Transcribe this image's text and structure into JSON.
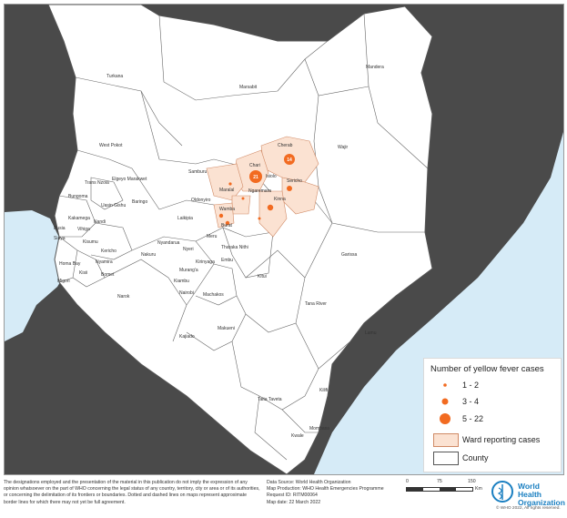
{
  "legend": {
    "title": "Number of yellow fever cases",
    "items": [
      "1 - 2",
      "3 - 4",
      "5 - 22"
    ],
    "ward_label": "Ward reporting cases",
    "county_label": "County"
  },
  "colors": {
    "case_marker": "#f26b21",
    "ward_fill": "#fbe2d2",
    "land": "#ffffff",
    "foreign": "#4a4a4a",
    "water": "#d6ebf7",
    "border": "#555555"
  },
  "counties": [
    "Turkana",
    "Marsabit",
    "Mandera",
    "Wajir",
    "West Pokot",
    "Samburu",
    "Trans Nzoia",
    "Elgeyo Marakwet",
    "Bungoma",
    "Uasin Gishu",
    "Nandi",
    "Busia",
    "Kakamega",
    "Vihiga",
    "Siaya",
    "Kisumu",
    "Kericho",
    "Homa Bay",
    "Kisii",
    "Migori",
    "Nyamira",
    "Bomet",
    "Narok",
    "Nakuru",
    "Laikipia",
    "Baringo",
    "Meru",
    "Isiolo",
    "Nyandarua",
    "Nyeri",
    "Kirinyaga",
    "Murang'a",
    "Tharaka Nithi",
    "Embu",
    "Kiambu",
    "Nairobi",
    "Machakos",
    "Kajiado",
    "Makueni",
    "Kitui",
    "Tana River",
    "Garissa",
    "Lamu",
    "Kilifi",
    "Taita Taveta",
    "Kwale",
    "Mombasa"
  ],
  "wards": [
    "Chari",
    "Cherab",
    "Oldonyiro",
    "Wamba",
    "Maralal",
    "Ngaremara",
    "Burat",
    "Kinna",
    "Sericho"
  ],
  "case_points": [
    {
      "ward": "Cherab",
      "count": "14"
    },
    {
      "ward": "Chari",
      "count": "21"
    },
    {
      "ward": "Sericho",
      "count": "6"
    },
    {
      "ward": "Kinna",
      "count": "3"
    },
    {
      "ward": "Maralal",
      "count": "1"
    },
    {
      "ward": "Wamba",
      "count": "1"
    },
    {
      "ward": "Oldonyiro",
      "count": "2"
    },
    {
      "ward": "Ngaremara",
      "count": "1"
    },
    {
      "ward": "Burat",
      "count": "2"
    }
  ],
  "footer": {
    "disclaimer": "The designations employed and the presentation of the material in this publication do not imply the expression of any opinion whatsoever on the part of WHO concerning the legal status of any country, territory, city or area or of its authorities, or concerning the delimitation of its frontiers or boundaries. Dotted and dashed lines on maps represent approximate border lines for which there may not yet be full agreement.",
    "source_lines": [
      "Data Source: World Health Organization",
      "Map Production: WHO Health Emergencies Programme",
      "Request ID: RITM00064",
      "Map date: 22 March 2022"
    ],
    "scale_ticks": [
      "0",
      "75",
      "150"
    ],
    "scale_unit": "Km",
    "org_name_1": "World Health",
    "org_name_2": "Organization",
    "copyright": "© WHO 2022, All rights reserved."
  }
}
